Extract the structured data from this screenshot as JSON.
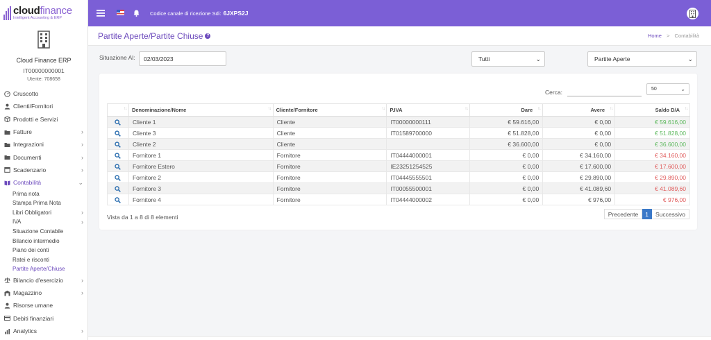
{
  "brand": {
    "name_part1": "cloud",
    "name_part2": "finance",
    "tagline": "Intelligent Accounting & ERP"
  },
  "company": {
    "name": "Cloud Finance ERP",
    "vat": "IT00000000001",
    "user": "Utente: 708658"
  },
  "sidebar": {
    "items": [
      {
        "label": "Cruscotto",
        "icon": "dashboard-icon",
        "chevron": false
      },
      {
        "label": "Clienti/Fornitori",
        "icon": "user-icon",
        "chevron": false
      },
      {
        "label": "Prodotti e Servizi",
        "icon": "box-icon",
        "chevron": false
      },
      {
        "label": "Fatture",
        "icon": "folder-icon",
        "chevron": true
      },
      {
        "label": "Integrazioni",
        "icon": "folder-icon",
        "chevron": true
      },
      {
        "label": "Documenti",
        "icon": "folder-icon",
        "chevron": true
      },
      {
        "label": "Scadenzario",
        "icon": "calendar-icon",
        "chevron": true
      },
      {
        "label": "Contabilità",
        "icon": "book-icon",
        "chevron": true,
        "expanded": true
      }
    ],
    "submenu": [
      {
        "label": "Prima nota",
        "chevron": false
      },
      {
        "label": "Stampa Prima Nota",
        "chevron": false
      },
      {
        "label": "Libri Obbligatori",
        "chevron": true
      },
      {
        "label": "IVA",
        "chevron": true
      },
      {
        "label": "Situazione Contabile",
        "chevron": false
      },
      {
        "label": "Bilancio intermedio",
        "chevron": false
      },
      {
        "label": "Piano dei conti",
        "chevron": false
      },
      {
        "label": "Ratei e risconti",
        "chevron": false
      },
      {
        "label": "Partite Aperte/Chiuse",
        "chevron": false,
        "active": true
      }
    ],
    "items_after": [
      {
        "label": "Bilancio d'esercizio",
        "icon": "balance-icon",
        "chevron": true
      },
      {
        "label": "Magazzino",
        "icon": "warehouse-icon",
        "chevron": true
      },
      {
        "label": "Risorse umane",
        "icon": "user-icon",
        "chevron": false
      },
      {
        "label": "Debiti finanziari",
        "icon": "debt-icon",
        "chevron": false
      },
      {
        "label": "Analytics",
        "icon": "analytics-icon",
        "chevron": true
      }
    ]
  },
  "topbar": {
    "sdi_label": "Codice canale di ricezione Sdi:",
    "sdi_code": "6JXPS2J"
  },
  "header": {
    "title": "Partite Aperte/Partite Chiuse",
    "breadcrumb_home": "Home",
    "breadcrumb_sep": ">",
    "breadcrumb_current": "Contabilità"
  },
  "filters": {
    "situation_label": "Situazione Al:",
    "date_value": "02/03/2023",
    "type_select": "Tutti",
    "status_select": "Partite Aperte"
  },
  "table": {
    "search_label": "Cerca:",
    "page_size": "50",
    "columns": [
      "Denominazione/Nome",
      "Cliente/Fornitore",
      "P.IVA",
      "Dare",
      "Avere",
      "Saldo D/A"
    ],
    "rows": [
      {
        "name": "Cliente 1",
        "type": "Cliente",
        "vat": "IT00000000111",
        "dare": "€ 59.616,00",
        "avere": "€ 0,00",
        "saldo": "€ 59.616,00",
        "sign": "pos"
      },
      {
        "name": "Cliente 3",
        "type": "Cliente",
        "vat": "IT01589700000",
        "dare": "€ 51.828,00",
        "avere": "€ 0,00",
        "saldo": "€ 51.828,00",
        "sign": "pos"
      },
      {
        "name": "Cliente 2",
        "type": "Cliente",
        "vat": "",
        "dare": "€ 36.600,00",
        "avere": "€ 0,00",
        "saldo": "€ 36.600,00",
        "sign": "pos"
      },
      {
        "name": "Fornitore 1",
        "type": "Fornitore",
        "vat": "IT04444000001",
        "dare": "€ 0,00",
        "avere": "€ 34.160,00",
        "saldo": "€ 34.160,00",
        "sign": "neg"
      },
      {
        "name": "Fornitore Estero",
        "type": "Fornitore",
        "vat": "IE23251254525",
        "dare": "€ 0,00",
        "avere": "€ 17.600,00",
        "saldo": "€ 17.600,00",
        "sign": "neg"
      },
      {
        "name": "Fornitore 2",
        "type": "Fornitore",
        "vat": "IT04445555501",
        "dare": "€ 0,00",
        "avere": "€ 29.890,00",
        "saldo": "€ 29.890,00",
        "sign": "neg"
      },
      {
        "name": "Fornitore 3",
        "type": "Fornitore",
        "vat": "IT00055500001",
        "dare": "€ 0,00",
        "avere": "€ 41.089,60",
        "saldo": "€ 41.089,60",
        "sign": "neg"
      },
      {
        "name": "Fornitore 4",
        "type": "Fornitore",
        "vat": "IT04444000002",
        "dare": "€ 0,00",
        "avere": "€ 976,00",
        "saldo": "€ 976,00",
        "sign": "neg"
      }
    ],
    "info": "Vista da 1 a 8 di 8 elementi",
    "pagination": {
      "prev": "Precedente",
      "current": "1",
      "next": "Successivo"
    }
  },
  "colors": {
    "accent": "#7b5fd6",
    "positive": "#5cb85c",
    "negative": "#e05a5a",
    "page_current": "#3a78c8"
  }
}
